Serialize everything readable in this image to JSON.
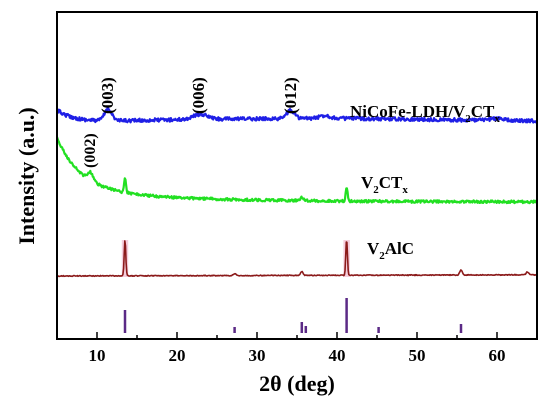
{
  "chart_data": {
    "type": "line",
    "xlabel": "2θ (deg)",
    "ylabel": "Intensity (a.u.)",
    "xlim": [
      5,
      65
    ],
    "x_ticks": [
      "10",
      "20",
      "30",
      "40",
      "50",
      "60"
    ],
    "y_ticks": "none",
    "grid": false,
    "series": [
      {
        "name": "NiCoFe-LDH/V2CTx",
        "label_main": "NiCoFe-LDH/V",
        "label_sub1": "2",
        "label_mid": "CT",
        "label_sub2": "x",
        "color": "#1f1fe6",
        "kind": "ldh_pattern"
      },
      {
        "name": "V2CTx",
        "label_main": "V",
        "label_sub1": "2",
        "label_mid": "CT",
        "label_sub2": "x",
        "color": "#22e022",
        "kind": "v2ctx_pattern"
      },
      {
        "name": "V2AlC",
        "label_main": "V",
        "label_sub1": "2",
        "label_mid": "AlC",
        "label_sub2": "",
        "color": "#8b1a1a",
        "kind": "v2alc_pattern"
      }
    ],
    "reference_sticks": {
      "color": "#5b2a86",
      "positions": [
        13.5,
        27.2,
        35.6,
        36.1,
        41.2,
        45.2,
        55.5
      ]
    },
    "annotations": [
      {
        "text": "(003)",
        "x": 11.4
      },
      {
        "text": "(006)",
        "x": 22.9
      },
      {
        "text": "(012)",
        "x": 34.2
      },
      {
        "text": "(002)",
        "x": 9.2
      }
    ],
    "highlight_color": "#f4c8d8"
  }
}
